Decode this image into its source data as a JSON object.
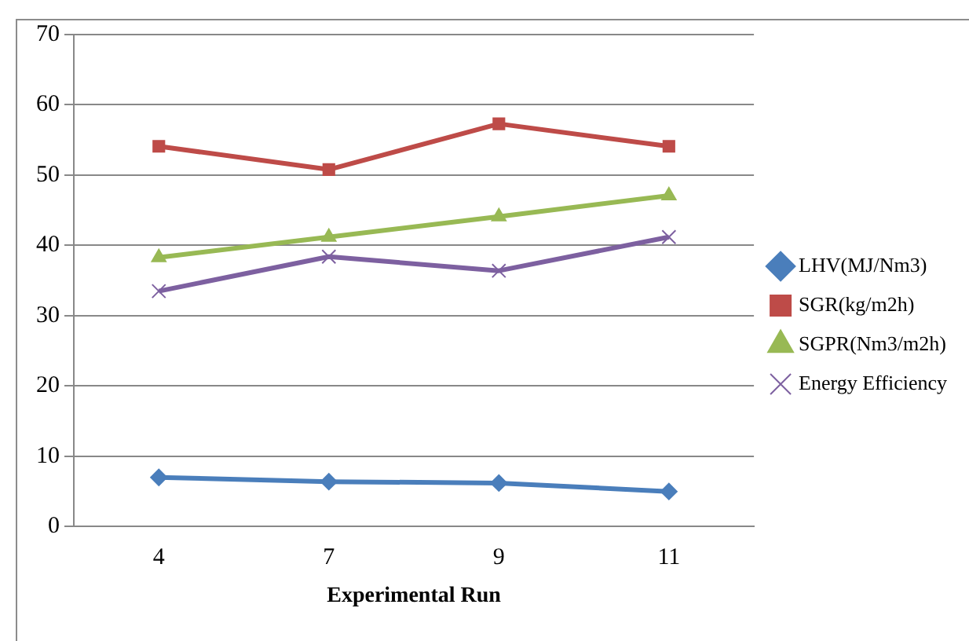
{
  "chart_data": {
    "type": "line",
    "xlabel": "Experimental Run",
    "categories": [
      "4",
      "7",
      "9",
      "11"
    ],
    "series": [
      {
        "name": "LHV(MJ/Nm3)",
        "color": "#4a7ebb",
        "values": [
          7.0,
          6.4,
          6.2,
          5.0
        ],
        "marker": "diamond"
      },
      {
        "name": "SGR(kg/m2h)",
        "color": "#be4b48",
        "values": [
          54.1,
          50.8,
          57.3,
          54.1
        ],
        "marker": "square"
      },
      {
        "name": "SGPR(Nm3/m2h)",
        "color": "#98b954",
        "values": [
          38.3,
          41.2,
          44.1,
          47.1
        ],
        "marker": "triangle"
      },
      {
        "name": "Energy Efficiency",
        "color": "#7d60a0",
        "values": [
          33.5,
          38.4,
          36.4,
          41.2
        ],
        "marker": "cross"
      }
    ],
    "ylim": [
      0,
      70
    ],
    "yticks": [
      0,
      10,
      20,
      30,
      40,
      50,
      60,
      70
    ],
    "grid": "y",
    "legend": "right"
  }
}
